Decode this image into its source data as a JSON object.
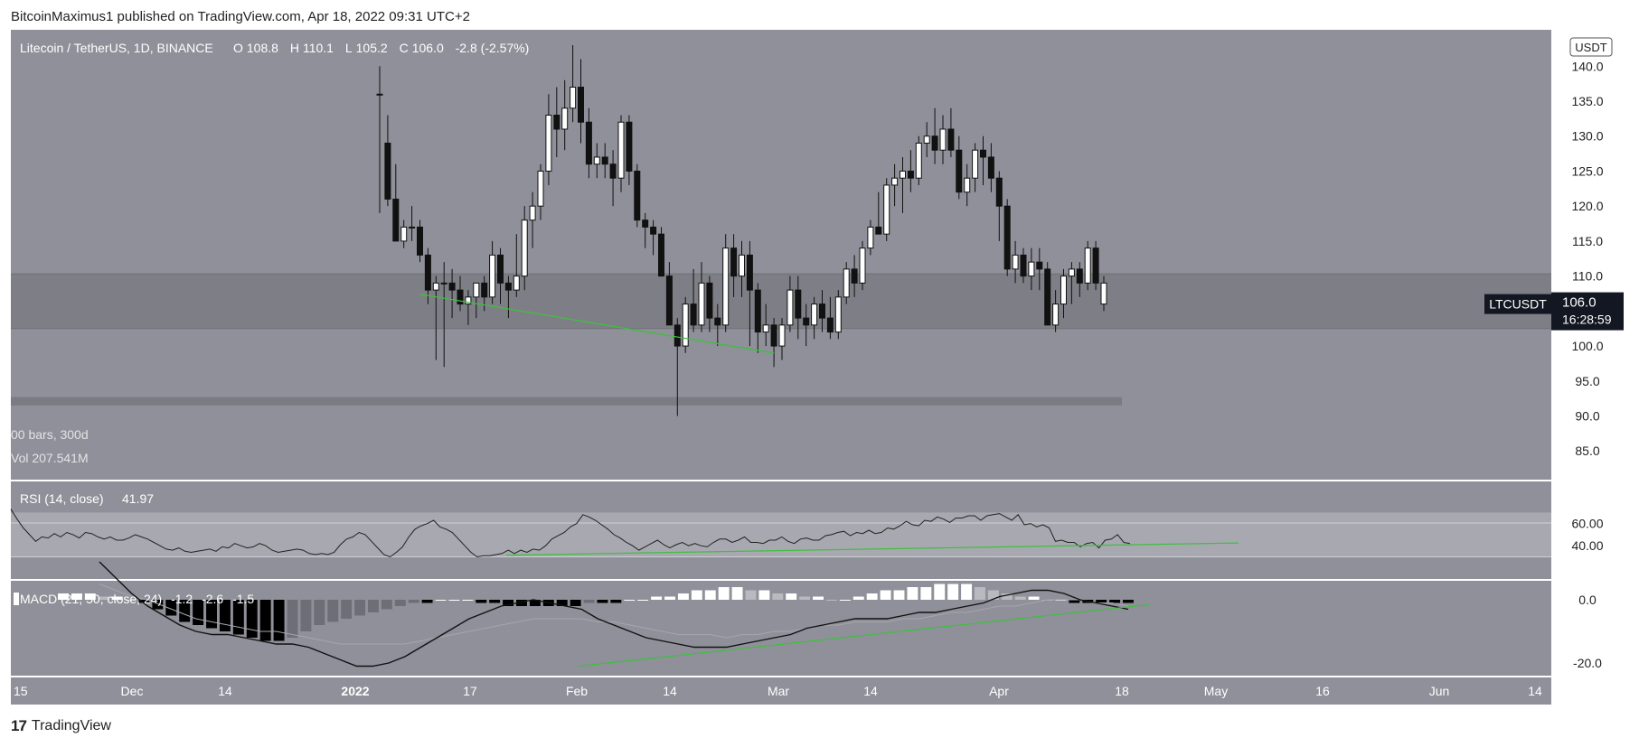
{
  "header": {
    "publisher": "BitcoinMaximus1 published on TradingView.com, Apr 18, 2022 09:31 UTC+2"
  },
  "footer": {
    "logo_text": "TradingView"
  },
  "chart_data": [
    {
      "type": "candlestick",
      "title": "Litecoin / TetherUS, 1D, BINANCE",
      "ohlc_legend": {
        "o_label": "O",
        "o": "108.8",
        "h_label": "H",
        "h": "110.1",
        "l_label": "L",
        "l": "105.2",
        "c_label": "C",
        "c": "106.0",
        "change": "-2.8 (-2.57%)"
      },
      "bars_label": "00 bars, 300d",
      "vol_label": "Vol 207.541M",
      "currency": "USDT",
      "symbol_tag": "LTCUSDT",
      "last_price": "106.0",
      "countdown": "16:28:59",
      "y_ticks": [
        "140.0",
        "135.0",
        "130.0",
        "125.0",
        "120.0",
        "115.0",
        "110.0",
        "105.0",
        "100.0",
        "95.0",
        "90.0",
        "85.0"
      ],
      "ylim": [
        80.9,
        145.2
      ],
      "x_ticks": [
        "15",
        "Dec",
        "14",
        "2022",
        "17",
        "Feb",
        "14",
        "Mar",
        "14",
        "Apr",
        "18",
        "May",
        "16",
        "Jun",
        "14"
      ],
      "resistance_zone": [
        102.5,
        110.3
      ],
      "support_band": [
        91.5,
        92.7
      ],
      "trendline": {
        "start": [
          "Jan 21",
          107.4
        ],
        "end": [
          "Mar 6",
          99.0
        ],
        "color": "#3fbf3f"
      },
      "candles": [
        [
          136,
          140,
          119,
          136
        ],
        [
          129,
          133,
          120,
          121
        ],
        [
          121,
          126,
          115,
          115
        ],
        [
          115,
          118,
          114,
          117
        ],
        [
          117,
          120,
          115,
          117
        ],
        [
          117,
          118,
          112,
          113
        ],
        [
          113,
          114,
          106,
          108
        ],
        [
          108,
          110,
          98,
          109
        ],
        [
          109,
          112,
          97,
          109
        ],
        [
          109,
          111,
          104,
          108
        ],
        [
          108,
          110,
          105,
          106
        ],
        [
          106,
          108,
          103,
          107
        ],
        [
          107,
          109,
          104,
          109
        ],
        [
          109,
          110,
          105,
          107
        ],
        [
          107,
          115,
          106,
          113
        ],
        [
          113,
          114,
          106,
          109
        ],
        [
          109,
          110,
          104,
          108
        ],
        [
          108,
          116,
          107,
          110
        ],
        [
          110,
          120,
          108,
          118
        ],
        [
          118,
          122,
          114,
          120
        ],
        [
          120,
          126,
          118,
          125
        ],
        [
          125,
          136,
          123,
          133
        ],
        [
          133,
          137,
          127,
          131
        ],
        [
          131,
          138,
          128,
          134
        ],
        [
          134,
          143,
          132,
          137
        ],
        [
          137,
          141,
          129,
          132
        ],
        [
          132,
          134,
          124,
          126
        ],
        [
          126,
          129,
          124,
          127
        ],
        [
          127,
          129,
          124,
          126
        ],
        [
          126,
          128,
          120,
          124
        ],
        [
          124,
          133,
          122,
          132
        ],
        [
          132,
          133,
          123,
          125
        ],
        [
          125,
          126,
          117,
          118
        ],
        [
          118,
          119,
          114,
          117
        ],
        [
          117,
          118,
          113,
          116
        ],
        [
          116,
          117,
          110,
          110
        ],
        [
          110,
          112,
          103,
          103
        ],
        [
          103,
          104,
          90,
          100
        ],
        [
          100,
          107,
          99,
          106
        ],
        [
          106,
          111,
          102,
          103
        ],
        [
          103,
          112,
          102,
          109
        ],
        [
          109,
          110,
          102,
          104
        ],
        [
          104,
          106,
          100,
          103
        ],
        [
          103,
          116,
          102,
          114
        ],
        [
          114,
          116,
          107,
          110
        ],
        [
          110,
          115,
          107,
          113
        ],
        [
          113,
          115,
          100,
          108
        ],
        [
          108,
          109,
          99,
          102
        ],
        [
          102,
          106,
          100,
          103
        ],
        [
          103,
          104,
          97,
          100
        ],
        [
          100,
          104,
          98,
          103
        ],
        [
          103,
          110,
          102,
          108
        ],
        [
          108,
          110,
          101,
          104
        ],
        [
          104,
          106,
          100,
          103
        ],
        [
          103,
          107,
          101,
          106
        ],
        [
          106,
          108,
          102,
          104
        ],
        [
          104,
          107,
          101,
          102
        ],
        [
          102,
          108,
          101,
          107
        ],
        [
          107,
          112,
          106,
          111
        ],
        [
          111,
          113,
          107,
          109
        ],
        [
          109,
          115,
          108,
          114
        ],
        [
          114,
          118,
          113,
          117
        ],
        [
          117,
          122,
          116,
          116
        ],
        [
          116,
          124,
          115,
          123
        ],
        [
          123,
          126,
          120,
          124
        ],
        [
          124,
          127,
          119,
          125
        ],
        [
          125,
          128,
          122,
          124
        ],
        [
          124,
          130,
          123,
          129
        ],
        [
          129,
          132,
          127,
          130
        ],
        [
          130,
          134,
          126,
          128
        ],
        [
          128,
          133,
          126,
          131
        ],
        [
          131,
          134,
          127,
          128
        ],
        [
          128,
          130,
          121,
          122
        ],
        [
          122,
          126,
          120,
          124
        ],
        [
          124,
          129,
          122,
          128
        ],
        [
          128,
          130,
          123,
          127
        ],
        [
          127,
          129,
          122,
          124
        ],
        [
          124,
          125,
          115,
          120
        ],
        [
          120,
          121,
          110,
          111
        ],
        [
          111,
          115,
          109,
          113
        ],
        [
          113,
          114,
          109,
          110
        ],
        [
          110,
          114,
          108,
          112
        ],
        [
          112,
          114,
          108,
          111
        ],
        [
          111,
          112,
          103,
          103
        ],
        [
          103,
          108,
          102,
          106
        ],
        [
          106,
          111,
          104,
          110
        ],
        [
          110,
          112,
          106,
          111
        ],
        [
          111,
          112,
          107,
          109
        ],
        [
          109,
          115,
          108,
          114
        ],
        [
          114,
          115,
          108,
          109
        ],
        [
          109,
          110,
          105,
          106
        ]
      ],
      "last_candle_color": "#ffffff"
    },
    {
      "type": "line",
      "title": "RSI (14, close)",
      "value_label": "41.97",
      "y_ticks": [
        "60.00",
        "40.00"
      ],
      "bands": [
        70,
        30
      ],
      "trendline_color": "#3fbf3f",
      "values": [
        73,
        64,
        56,
        50,
        44,
        48,
        47,
        51,
        48,
        52,
        50,
        47,
        52,
        51,
        48,
        46,
        48,
        45,
        45,
        47,
        50,
        48,
        46,
        43,
        40,
        37,
        36,
        38,
        35,
        34,
        35,
        36,
        37,
        35,
        39,
        38,
        42,
        40,
        38,
        39,
        42,
        40,
        36,
        34,
        35,
        36,
        37,
        36,
        33,
        32,
        33,
        32,
        34,
        41,
        46,
        48,
        52,
        50,
        44,
        38,
        32,
        30,
        34,
        39,
        48,
        55,
        58,
        60,
        63,
        57,
        55,
        52,
        46,
        40,
        34,
        30,
        31,
        31,
        32,
        33,
        36,
        33,
        36,
        34,
        37,
        36,
        40,
        46,
        49,
        52,
        57,
        60,
        68,
        66,
        63,
        59,
        55,
        50,
        47,
        43,
        40,
        36,
        39,
        42,
        45,
        41,
        38,
        41,
        43,
        40,
        42,
        40,
        39,
        43,
        46,
        46,
        43,
        45,
        48,
        43,
        43,
        42,
        45,
        45,
        48,
        44,
        42,
        46,
        47,
        45,
        45,
        49,
        50,
        52,
        53,
        49,
        52,
        51,
        54,
        51,
        52,
        56,
        55,
        58,
        62,
        59,
        58,
        63,
        62,
        66,
        64,
        61,
        65,
        65,
        67,
        67,
        63,
        67,
        68,
        69,
        66,
        63,
        68,
        59,
        60,
        57,
        59,
        56,
        44,
        45,
        43,
        43,
        39,
        42,
        43,
        38,
        45,
        46,
        50,
        43,
        42
      ],
      "ylim": [
        10,
        98
      ]
    },
    {
      "type": "macd",
      "title": "MACD (21, 50, close, 24)",
      "hist_label": "-1.2",
      "macd_label": "-2.6",
      "signal_label": "-1.5",
      "y_ticks": [
        "0.0",
        "-20.0"
      ],
      "ylim": [
        -24,
        6
      ],
      "macd_line": [
        12,
        7,
        2,
        -2,
        -5,
        -8,
        -10,
        -11,
        -11,
        -12,
        -13,
        -14,
        -14,
        -15,
        -17,
        -19,
        -21,
        -21,
        -20,
        -18,
        -15,
        -12,
        -9,
        -6,
        -4,
        -2,
        -1,
        0,
        -1,
        -2,
        -3,
        -6,
        -8,
        -10,
        -12,
        -13,
        -14,
        -15,
        -15,
        -15,
        -14,
        -13,
        -12,
        -11,
        -9,
        -8,
        -7,
        -6,
        -6,
        -6,
        -5,
        -4,
        -4,
        -3,
        -2,
        -1,
        1,
        2,
        3,
        3,
        2,
        0,
        -1,
        -2,
        -3
      ],
      "signal_line": [
        5,
        3,
        1,
        0,
        -2,
        -4,
        -6,
        -7,
        -8,
        -9,
        -10,
        -10,
        -11,
        -12,
        -13,
        -14,
        -14,
        -14,
        -14,
        -14,
        -13,
        -12,
        -11,
        -10,
        -9,
        -8,
        -7,
        -6,
        -6,
        -6,
        -6,
        -7,
        -7,
        -8,
        -9,
        -10,
        -11,
        -11,
        -11,
        -12,
        -11,
        -11,
        -10,
        -10,
        -9,
        -8,
        -8,
        -7,
        -7,
        -7,
        -6,
        -6,
        -5,
        -4,
        -4,
        -3,
        -2,
        -2,
        -1,
        0,
        0,
        0,
        -1,
        -1,
        -2
      ],
      "histogram": [
        2,
        2,
        2,
        1,
        1,
        0,
        -1,
        -3,
        -5,
        -7,
        -8,
        -9,
        -10,
        -11,
        -12,
        -13,
        -13,
        -12,
        -10,
        -8,
        -7,
        -6,
        -5,
        -4,
        -3,
        -2,
        -1,
        -1,
        0,
        0,
        0,
        -1,
        -1,
        -2,
        -2,
        -2,
        -2,
        -2,
        -2,
        -1,
        -1,
        -1,
        0,
        0,
        1,
        1,
        2,
        3,
        3,
        4,
        4,
        3,
        3,
        2,
        2,
        1,
        1,
        0,
        0,
        1,
        2,
        3,
        3,
        4,
        4,
        5,
        5,
        5,
        4,
        3,
        2,
        1,
        1,
        0,
        0,
        -1,
        -1,
        -1,
        -1,
        -1
      ],
      "trendline_color": "#3fbf3f"
    }
  ]
}
